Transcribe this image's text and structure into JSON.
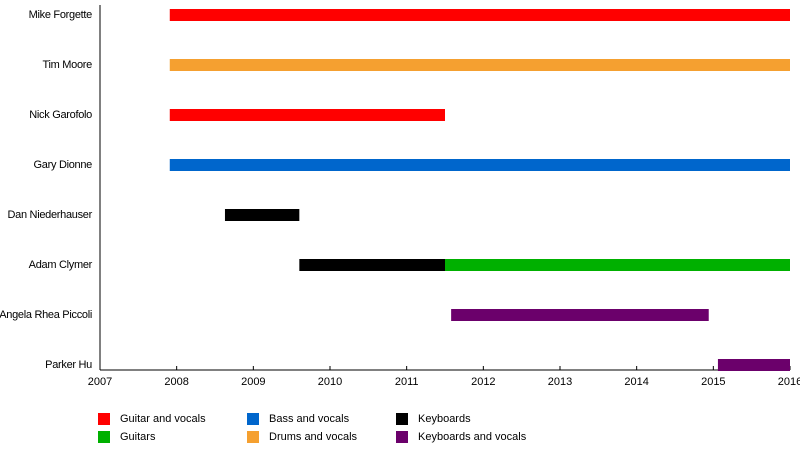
{
  "chart_data": {
    "type": "timeline",
    "categories": [
      "Mike Forgette",
      "Tim Moore",
      "Nick Garofolo",
      "Gary Dionne",
      "Dan Niederhauser",
      "Adam Clymer",
      "Angela Rhea Piccoli",
      "Parker Hu"
    ],
    "series": [
      {
        "name": "Guitar and vocals",
        "color": "#ff0000",
        "start": [
          2007.91,
          null,
          2007.91,
          null,
          null,
          null,
          null,
          null
        ],
        "end": [
          2016,
          null,
          2011.5,
          null,
          null,
          null,
          null,
          null
        ]
      },
      {
        "name": "Guitars",
        "color": "#00b000",
        "start": [
          null,
          null,
          null,
          null,
          null,
          2011.5,
          null,
          null
        ],
        "end": [
          null,
          null,
          null,
          null,
          null,
          2016,
          null,
          null
        ]
      },
      {
        "name": "Bass and vocals",
        "color": "#0066cc",
        "start": [
          null,
          null,
          null,
          2007.91,
          null,
          null,
          null,
          null
        ],
        "end": [
          null,
          null,
          null,
          2016,
          null,
          null,
          null,
          null
        ]
      },
      {
        "name": "Drums and vocals",
        "color": "#f5a030",
        "start": [
          null,
          2007.91,
          null,
          null,
          null,
          null,
          null,
          null
        ],
        "end": [
          null,
          2016,
          null,
          null,
          null,
          null,
          null,
          null
        ]
      },
      {
        "name": "Keyboards",
        "color": "#000000",
        "start": [
          null,
          null,
          null,
          null,
          2008.63,
          2009.6,
          null,
          null
        ],
        "end": [
          null,
          null,
          null,
          null,
          2009.6,
          2011.5,
          null,
          null
        ]
      },
      {
        "name": "Keyboards and vocals",
        "color": "#6b006b",
        "start": [
          null,
          null,
          null,
          null,
          null,
          null,
          2011.58,
          2015.06
        ],
        "end": [
          null,
          null,
          null,
          null,
          null,
          null,
          2014.94,
          2016
        ]
      }
    ],
    "xlim": [
      2007,
      2016
    ],
    "xticks": [
      2007,
      2008,
      2009,
      2010,
      2011,
      2012,
      2013,
      2014,
      2015,
      2016
    ]
  }
}
